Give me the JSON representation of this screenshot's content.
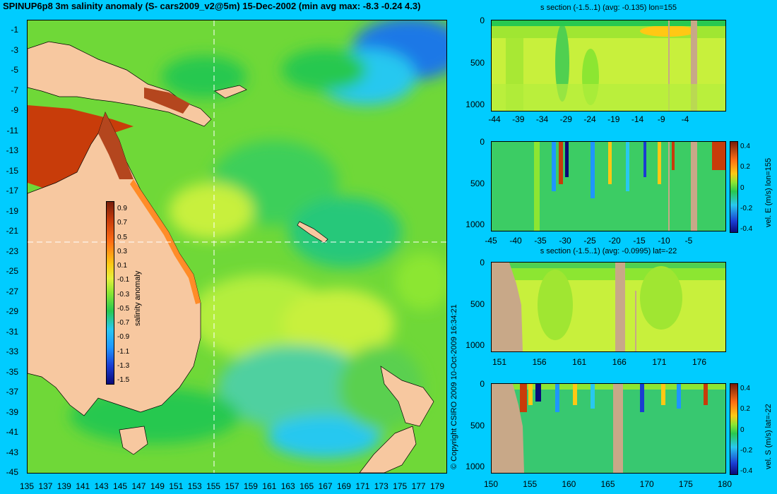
{
  "title": "SPINUP6p8 3m salinity anomaly (S- cars2009_v2@5m) 15-Dec-2002 (min avg max: -8.3 -0.24 4.3)",
  "copyright": "© Copyright CSIRO 2009   10-Oct-2009 16:34:21",
  "colors": {
    "background": "#00ccff",
    "land": "#f7c8a0",
    "section_land": "#c8a888",
    "colorscale": [
      "#0a0a78",
      "#1a3cd2",
      "#1e96ff",
      "#28c8f0",
      "#28c850",
      "#8ce632",
      "#e6f03c",
      "#ffc814",
      "#ff6e14",
      "#c83c0a",
      "#781e0a"
    ]
  },
  "map": {
    "lon_ticks": [
      "135",
      "137",
      "139",
      "141",
      "143",
      "145",
      "147",
      "149",
      "151",
      "153",
      "155",
      "157",
      "159",
      "161",
      "163",
      "165",
      "167",
      "169",
      "171",
      "173",
      "175",
      "177",
      "179"
    ],
    "lat_ticks": [
      "-1",
      "-3",
      "-5",
      "-7",
      "-9",
      "-11",
      "-13",
      "-15",
      "-17",
      "-19",
      "-21",
      "-23",
      "-25",
      "-27",
      "-29",
      "-31",
      "-33",
      "-35",
      "-37",
      "-39",
      "-41",
      "-43",
      "-45"
    ],
    "colorbar": {
      "label": "salinity anomaly",
      "ticks": [
        "0.9",
        "0.7",
        "0.5",
        "0.3",
        "0.1",
        "-0.1",
        "-0.3",
        "-0.5",
        "-0.7",
        "-0.9",
        "-1.1",
        "-1.3",
        "-1.5"
      ]
    },
    "crosshair": {
      "lon": 155,
      "lat": -22
    }
  },
  "panels": [
    {
      "title": "s section (-1.5..1) (avg: -0.135) lon=155",
      "x_ticks": [
        "-44",
        "-39",
        "-34",
        "-29",
        "-24",
        "-19",
        "-14",
        "-9",
        "-4"
      ],
      "y_ticks": [
        "0",
        "500",
        "1000"
      ],
      "colorbar_label": "",
      "colorbar_ticks": []
    },
    {
      "title": "",
      "x_ticks": [
        "-45",
        "-40",
        "-35",
        "-30",
        "-25",
        "-20",
        "-15",
        "-10",
        "-5"
      ],
      "y_ticks": [
        "0",
        "500",
        "1000"
      ],
      "colorbar_label": "vel. E (m/s) lon=155",
      "colorbar_ticks": [
        "0.4",
        "0.2",
        "0",
        "-0.2",
        "-0.4"
      ]
    },
    {
      "title": "s section (-1.5..1) (avg: -0.0995) lat=-22",
      "x_ticks": [
        "151",
        "156",
        "161",
        "166",
        "171",
        "176"
      ],
      "y_ticks": [
        "0",
        "500",
        "1000"
      ],
      "colorbar_label": "",
      "colorbar_ticks": []
    },
    {
      "title": "",
      "x_ticks": [
        "150",
        "155",
        "160",
        "165",
        "170",
        "175",
        "180"
      ],
      "y_ticks": [
        "0",
        "500",
        "1000"
      ],
      "colorbar_label": "vel. S (m/s) lat=-22",
      "colorbar_ticks": [
        "0.4",
        "0.2",
        "0",
        "-0.2",
        "-0.4"
      ]
    }
  ],
  "chart_data": [
    {
      "type": "heatmap",
      "title": "SPINUP6p8 3m salinity anomaly (S- cars2009_v2@5m) 15-Dec-2002 (min avg max: -8.3 -0.24 4.3)",
      "xlabel": "",
      "ylabel": "",
      "xlim": [
        135,
        180
      ],
      "ylim": [
        -45,
        0
      ],
      "colorbar": {
        "label": "salinity anomaly",
        "range": [
          -1.5,
          1.0
        ]
      },
      "stats": {
        "min": -8.3,
        "avg": -0.24,
        "max": 4.3
      }
    },
    {
      "type": "heatmap",
      "title": "s section (-1.5..1) (avg: -0.135) lon=155",
      "xlim": [
        -45,
        0
      ],
      "ylim": [
        1050,
        0
      ],
      "colorbar": {
        "range": [
          -1.5,
          1.0
        ]
      },
      "stats": {
        "avg": -0.135
      }
    },
    {
      "type": "heatmap",
      "title": "",
      "xlim": [
        -45,
        0
      ],
      "ylim": [
        1050,
        0
      ],
      "colorbar": {
        "label": "vel. E (m/s) lon=155",
        "range": [
          -0.4,
          0.4
        ]
      }
    },
    {
      "type": "heatmap",
      "title": "s section (-1.5..1) (avg: -0.0995) lat=-22",
      "xlim": [
        150,
        180
      ],
      "ylim": [
        1050,
        0
      ],
      "colorbar": {
        "range": [
          -1.5,
          1.0
        ]
      },
      "stats": {
        "avg": -0.0995
      }
    },
    {
      "type": "heatmap",
      "title": "",
      "xlim": [
        150,
        180
      ],
      "ylim": [
        1050,
        0
      ],
      "colorbar": {
        "label": "vel. S (m/s) lat=-22",
        "range": [
          -0.4,
          0.4
        ]
      }
    }
  ]
}
